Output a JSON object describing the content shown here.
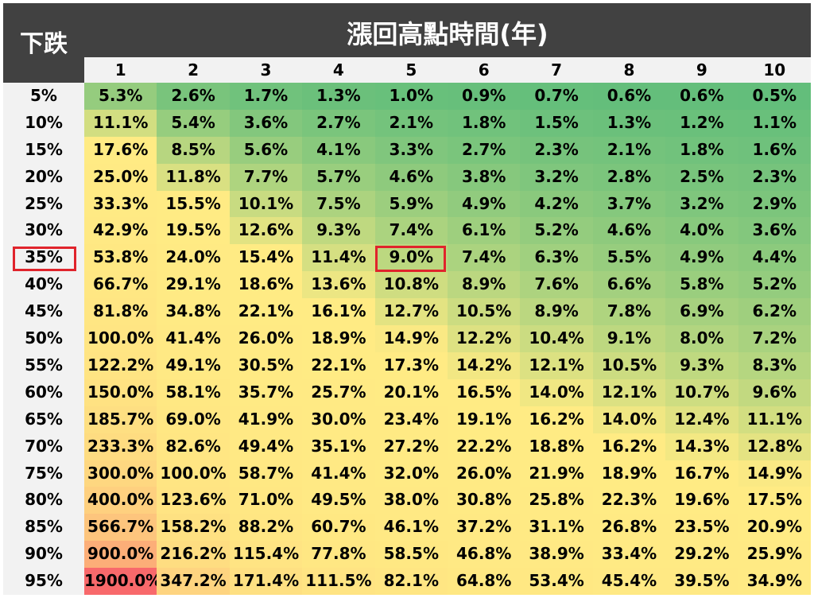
{
  "corner_label": "下跌",
  "header_title": "漲回高點時間(年)",
  "highlight_color": "#e0242c",
  "chart_data": {
    "type": "heatmap",
    "title": "漲回高點時間(年)",
    "xlabel": "漲回高點時間(年)",
    "ylabel": "下跌",
    "columns": [
      "1",
      "2",
      "3",
      "4",
      "5",
      "6",
      "7",
      "8",
      "9",
      "10"
    ],
    "rows": [
      "5%",
      "10%",
      "15%",
      "20%",
      "25%",
      "30%",
      "35%",
      "40%",
      "45%",
      "50%",
      "55%",
      "60%",
      "65%",
      "70%",
      "75%",
      "80%",
      "85%",
      "90%",
      "95%"
    ],
    "values": [
      [
        "5.3%",
        "2.6%",
        "1.7%",
        "1.3%",
        "1.0%",
        "0.9%",
        "0.7%",
        "0.6%",
        "0.6%",
        "0.5%"
      ],
      [
        "11.1%",
        "5.4%",
        "3.6%",
        "2.7%",
        "2.1%",
        "1.8%",
        "1.5%",
        "1.3%",
        "1.2%",
        "1.1%"
      ],
      [
        "17.6%",
        "8.5%",
        "5.6%",
        "4.1%",
        "3.3%",
        "2.7%",
        "2.3%",
        "2.1%",
        "1.8%",
        "1.6%"
      ],
      [
        "25.0%",
        "11.8%",
        "7.7%",
        "5.7%",
        "4.6%",
        "3.8%",
        "3.2%",
        "2.8%",
        "2.5%",
        "2.3%"
      ],
      [
        "33.3%",
        "15.5%",
        "10.1%",
        "7.5%",
        "5.9%",
        "4.9%",
        "4.2%",
        "3.7%",
        "3.2%",
        "2.9%"
      ],
      [
        "42.9%",
        "19.5%",
        "12.6%",
        "9.3%",
        "7.4%",
        "6.1%",
        "5.2%",
        "4.6%",
        "4.0%",
        "3.6%"
      ],
      [
        "53.8%",
        "24.0%",
        "15.4%",
        "11.4%",
        "9.0%",
        "7.4%",
        "6.3%",
        "5.5%",
        "4.9%",
        "4.4%"
      ],
      [
        "66.7%",
        "29.1%",
        "18.6%",
        "13.6%",
        "10.8%",
        "8.9%",
        "7.6%",
        "6.6%",
        "5.8%",
        "5.2%"
      ],
      [
        "81.8%",
        "34.8%",
        "22.1%",
        "16.1%",
        "12.7%",
        "10.5%",
        "8.9%",
        "7.8%",
        "6.9%",
        "6.2%"
      ],
      [
        "100.0%",
        "41.4%",
        "26.0%",
        "18.9%",
        "14.9%",
        "12.2%",
        "10.4%",
        "9.1%",
        "8.0%",
        "7.2%"
      ],
      [
        "122.2%",
        "49.1%",
        "30.5%",
        "22.1%",
        "17.3%",
        "14.2%",
        "12.1%",
        "10.5%",
        "9.3%",
        "8.3%"
      ],
      [
        "150.0%",
        "58.1%",
        "35.7%",
        "25.7%",
        "20.1%",
        "16.5%",
        "14.0%",
        "12.1%",
        "10.7%",
        "9.6%"
      ],
      [
        "185.7%",
        "69.0%",
        "41.9%",
        "30.0%",
        "23.4%",
        "19.1%",
        "16.2%",
        "14.0%",
        "12.4%",
        "11.1%"
      ],
      [
        "233.3%",
        "82.6%",
        "49.4%",
        "35.1%",
        "27.2%",
        "22.2%",
        "18.8%",
        "16.2%",
        "14.3%",
        "12.8%"
      ],
      [
        "300.0%",
        "100.0%",
        "58.7%",
        "41.4%",
        "32.0%",
        "26.0%",
        "21.9%",
        "18.9%",
        "16.7%",
        "14.9%"
      ],
      [
        "400.0%",
        "123.6%",
        "71.0%",
        "49.5%",
        "38.0%",
        "30.8%",
        "25.8%",
        "22.3%",
        "19.6%",
        "17.5%"
      ],
      [
        "566.7%",
        "158.2%",
        "88.2%",
        "60.7%",
        "46.1%",
        "37.2%",
        "31.1%",
        "26.8%",
        "23.5%",
        "20.9%"
      ],
      [
        "900.0%",
        "216.2%",
        "115.4%",
        "77.8%",
        "58.5%",
        "46.8%",
        "38.9%",
        "33.4%",
        "29.2%",
        "25.9%"
      ],
      [
        "1900.0%",
        "347.2%",
        "171.4%",
        "111.5%",
        "82.1%",
        "64.8%",
        "53.4%",
        "45.4%",
        "39.5%",
        "34.9%"
      ]
    ],
    "color_scale": {
      "low": "#63be7b",
      "mid": "#ffeb84",
      "high": "#f8696b"
    },
    "highlights": {
      "row": "35%",
      "cell": {
        "row": "35%",
        "column": "5"
      }
    }
  }
}
